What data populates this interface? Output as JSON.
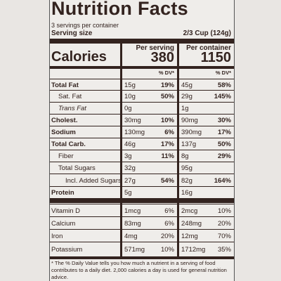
{
  "header": {
    "title": "Nutrition Facts",
    "servings": "3 servings per container",
    "serving_size_label": "Serving size",
    "serving_size": "2/3 Cup (124g)"
  },
  "columns": {
    "per_serving": "Per serving",
    "per_container": "Per container",
    "dv": "% DV*"
  },
  "calories": {
    "label": "Calories",
    "per_serving": "380",
    "per_container": "1150"
  },
  "rows": [
    {
      "name": "Total Fat",
      "serving_amount": "15g",
      "serving_dv": "19%",
      "container_amount": "45g",
      "container_dv": "58%"
    },
    {
      "name": "Sat. Fat",
      "serving_amount": "10g",
      "serving_dv": "50%",
      "container_amount": "29g",
      "container_dv": "145%"
    },
    {
      "name": "Trans Fat",
      "serving_amount": "0g",
      "container_amount": "1g"
    },
    {
      "name": "Cholest.",
      "serving_amount": "30mg",
      "serving_dv": "10%",
      "container_amount": "90mg",
      "container_dv": "30%"
    },
    {
      "name": "Sodium",
      "serving_amount": "130mg",
      "serving_dv": "6%",
      "container_amount": "390mg",
      "container_dv": "17%"
    },
    {
      "name": "Total Carb.",
      "serving_amount": "46g",
      "serving_dv": "17%",
      "container_amount": "137g",
      "container_dv": "50%"
    },
    {
      "name": "Fiber",
      "serving_amount": "3g",
      "serving_dv": "11%",
      "container_amount": "8g",
      "container_dv": "29%"
    },
    {
      "name": "Total Sugars",
      "serving_amount": "32g",
      "container_amount": "95g"
    },
    {
      "name": "Incl. Added Sugars",
      "serving_amount": "27g",
      "serving_dv": "54%",
      "container_amount": "82g",
      "container_dv": "164%"
    },
    {
      "name": "Protein",
      "serving_amount": "5g",
      "container_amount": "16g"
    },
    {
      "name": "Vitamin D",
      "serving_amount": "1mcg",
      "serving_dv": "6%",
      "container_amount": "2mcg",
      "container_dv": "10%"
    },
    {
      "name": "Calcium",
      "serving_amount": "83mg",
      "serving_dv": "6%",
      "container_amount": "248mg",
      "container_dv": "20%"
    },
    {
      "name": "Iron",
      "serving_amount": "4mg",
      "serving_dv": "20%",
      "container_amount": "12mg",
      "container_dv": "70%"
    },
    {
      "name": "Potassium",
      "serving_amount": "571mg",
      "serving_dv": "10%",
      "container_amount": "1712mg",
      "container_dv": "35%"
    }
  ],
  "footnote": "* The % Daily Value tells you how much a nutrient in a serving of food contributes to a daily diet. 2,000 calories a day is used for general nutrition advice."
}
